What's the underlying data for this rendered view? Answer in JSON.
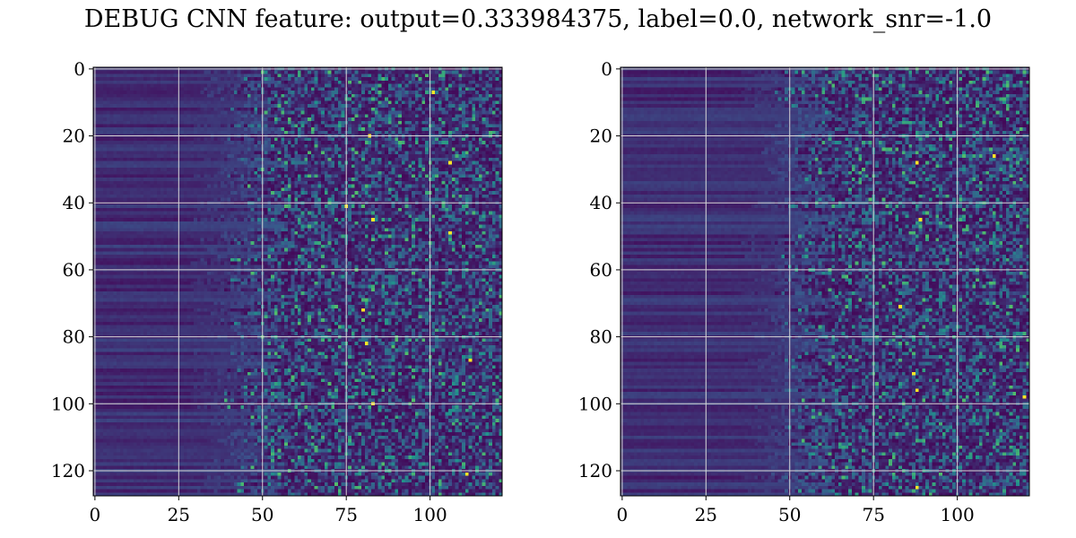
{
  "title": "DEBUG CNN feature: output=0.333984375, label=0.0, network_snr=-1.0",
  "colormap": [
    "#440154",
    "#3b528b",
    "#21918c",
    "#5ec962",
    "#fde725"
  ],
  "grid_color": "#d8d8d8",
  "chart_data": [
    {
      "type": "heatmap",
      "title": "",
      "xlabel": "",
      "ylabel": "",
      "grid": true,
      "rows": 128,
      "cols": 122,
      "xlim": [
        0,
        121
      ],
      "ylim": [
        127,
        0
      ],
      "xticks": [
        0,
        25,
        50,
        75,
        100
      ],
      "xtick_labels": [
        "0",
        "25",
        "50",
        "75",
        "100"
      ],
      "yticks": [
        0,
        20,
        40,
        60,
        80,
        100,
        120
      ],
      "ytick_labels": [
        "0",
        "20",
        "40",
        "60",
        "80",
        "100",
        "120"
      ],
      "value_range": [
        0,
        1
      ],
      "description_of_values": "low uniform values for columns 0-40 with horizontal banding, noisy scattered higher values for columns 50-121",
      "noise_onset_col": 48,
      "peak_cells": [
        [
          7,
          101
        ],
        [
          20,
          82
        ],
        [
          28,
          106
        ],
        [
          41,
          75
        ],
        [
          45,
          83
        ],
        [
          49,
          106
        ],
        [
          72,
          80
        ],
        [
          82,
          81
        ],
        [
          87,
          112
        ],
        [
          100,
          83
        ],
        [
          121,
          111
        ]
      ]
    },
    {
      "type": "heatmap",
      "title": "",
      "xlabel": "",
      "ylabel": "",
      "grid": true,
      "rows": 128,
      "cols": 122,
      "xlim": [
        0,
        121
      ],
      "ylim": [
        127,
        0
      ],
      "xticks": [
        0,
        25,
        50,
        75,
        100
      ],
      "xtick_labels": [
        "0",
        "25",
        "50",
        "75",
        "100"
      ],
      "yticks": [
        0,
        20,
        40,
        60,
        80,
        100,
        120
      ],
      "ytick_labels": [
        "0",
        "20",
        "40",
        "60",
        "80",
        "100",
        "120"
      ],
      "value_range": [
        0,
        1
      ],
      "description_of_values": "low uniform values for columns 0-45 with horizontal banding, noisy scattered higher values for columns 55-121",
      "noise_onset_col": 55,
      "peak_cells": [
        [
          26,
          111
        ],
        [
          28,
          88
        ],
        [
          45,
          89
        ],
        [
          71,
          83
        ],
        [
          91,
          87
        ],
        [
          96,
          88
        ],
        [
          98,
          120
        ],
        [
          125,
          88
        ]
      ]
    }
  ]
}
